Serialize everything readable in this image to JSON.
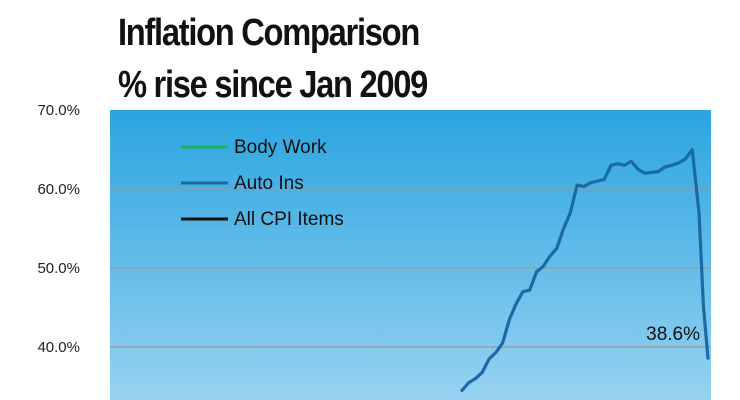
{
  "title_line1": "Inflation Comparison",
  "title_line2": "% rise since Jan 2009",
  "colors": {
    "plot_top": "#2aa5e0",
    "plot_bottom": "#9bd3f1",
    "grid": "#9a9a9a",
    "body_work": "#1fb25a",
    "auto_ins": "#1a6aa6",
    "all_cpi": "#111111"
  },
  "chart_data": {
    "type": "line",
    "title": "Inflation Comparison % rise since Jan 2009",
    "ylim": [
      35,
      70
    ],
    "yticks": [
      {
        "value": 70,
        "label": "70.0%"
      },
      {
        "value": 60,
        "label": "60.0%"
      },
      {
        "value": 50,
        "label": "50.0%"
      },
      {
        "value": 40,
        "label": "40.0%"
      }
    ],
    "grid": true,
    "legend_position": "top-left",
    "legend": [
      {
        "label": "Body Work",
        "color": "#1fb25a"
      },
      {
        "label": "Auto Ins",
        "color": "#1a6aa6"
      },
      {
        "label": "All CPI Items",
        "color": "#111111"
      }
    ],
    "series": [
      {
        "name": "Auto Ins",
        "color": "#1a6aa6",
        "x": [
          0,
          3,
          6,
          9,
          12,
          15,
          18,
          21,
          24,
          27,
          30,
          33,
          36,
          39,
          42,
          45,
          48,
          51,
          54,
          57,
          60,
          63,
          66,
          69,
          72,
          75,
          78,
          81,
          84,
          87,
          90,
          93,
          96,
          99,
          102,
          105,
          107,
          109
        ],
        "values": [
          34.5,
          35.5,
          36.0,
          36.8,
          38.5,
          39.3,
          40.5,
          43.5,
          45.5,
          47.0,
          47.2,
          49.5,
          50.2,
          51.5,
          52.5,
          55.0,
          57.0,
          60.5,
          60.3,
          60.8,
          61.0,
          61.2,
          63.0,
          63.2,
          63.0,
          63.5,
          62.5,
          62.0,
          62.1,
          62.2,
          62.8,
          63.0,
          63.3,
          63.8,
          65.0,
          57.0,
          45.0,
          38.6
        ]
      }
    ],
    "annotations": [
      {
        "text": "38.6%",
        "series": "Auto Ins",
        "x": 109,
        "y": 38.6
      }
    ]
  }
}
